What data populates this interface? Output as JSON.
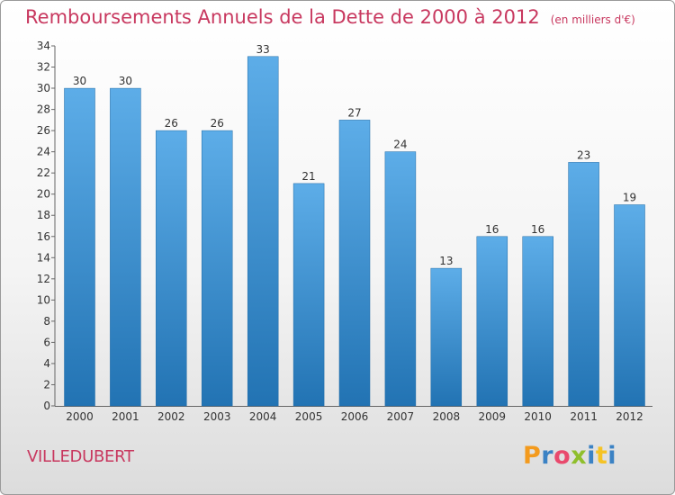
{
  "header": {
    "title": "Remboursements Annuels de la Dette de 2000 à 2012",
    "subtitle": "(en milliers d'€)"
  },
  "footer": {
    "city": "VILLEDUBERT",
    "logo": [
      "P",
      "r",
      "o",
      "x",
      "i",
      "t",
      "i"
    ]
  },
  "colors": {
    "bar_top": "#5dade8",
    "bar_bottom": "#2273b3",
    "title": "#c8385f"
  },
  "chart_data": {
    "type": "bar",
    "title": "Remboursements Annuels de la Dette de 2000 à 2012",
    "subtitle": "(en milliers d'€)",
    "categories": [
      "2000",
      "2001",
      "2002",
      "2003",
      "2004",
      "2005",
      "2006",
      "2007",
      "2008",
      "2009",
      "2010",
      "2011",
      "2012"
    ],
    "values": [
      30,
      30,
      26,
      26,
      33,
      21,
      27,
      24,
      13,
      16,
      16,
      23,
      19
    ],
    "ylim": [
      0,
      34
    ],
    "yticks": [
      0,
      2,
      4,
      6,
      8,
      10,
      12,
      14,
      16,
      18,
      20,
      22,
      24,
      26,
      28,
      30,
      32,
      34
    ],
    "grid": false,
    "legend": "none"
  }
}
